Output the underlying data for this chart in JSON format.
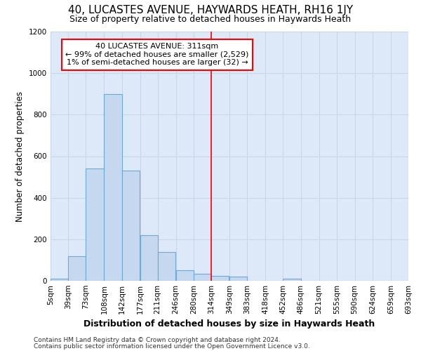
{
  "title": "40, LUCASTES AVENUE, HAYWARDS HEATH, RH16 1JY",
  "subtitle": "Size of property relative to detached houses in Haywards Heath",
  "xlabel": "Distribution of detached houses by size in Haywards Heath",
  "ylabel": "Number of detached properties",
  "footnote1": "Contains HM Land Registry data © Crown copyright and database right 2024.",
  "footnote2": "Contains public sector information licensed under the Open Government Licence v3.0.",
  "annotation_title": "40 LUCASTES AVENUE: 311sqm",
  "annotation_line1": "← 99% of detached houses are smaller (2,529)",
  "annotation_line2": "1% of semi-detached houses are larger (32) →",
  "bin_edges": [
    5,
    39,
    73,
    108,
    142,
    177,
    211,
    246,
    280,
    314,
    349,
    383,
    418,
    452,
    486,
    521,
    555,
    590,
    624,
    659,
    693
  ],
  "bin_counts": [
    10,
    120,
    540,
    900,
    530,
    220,
    140,
    50,
    35,
    25,
    20,
    0,
    0,
    10,
    0,
    0,
    0,
    0,
    0,
    0
  ],
  "bar_color": "#c5d8f0",
  "bar_edge_color": "#6aaad4",
  "vline_color": "red",
  "vline_x": 314,
  "annotation_box_edgecolor": "red",
  "annotation_box_fill": "white",
  "grid_color": "#c8d4e8",
  "plot_bg_color": "#dde8f8",
  "fig_bg_color": "#ffffff",
  "ylim": [
    0,
    1200
  ],
  "yticks": [
    0,
    200,
    400,
    600,
    800,
    1000,
    1200
  ],
  "title_fontsize": 11,
  "subtitle_fontsize": 9,
  "ylabel_fontsize": 8.5,
  "xlabel_fontsize": 9,
  "tick_fontsize": 7.5,
  "footnote_fontsize": 6.5
}
